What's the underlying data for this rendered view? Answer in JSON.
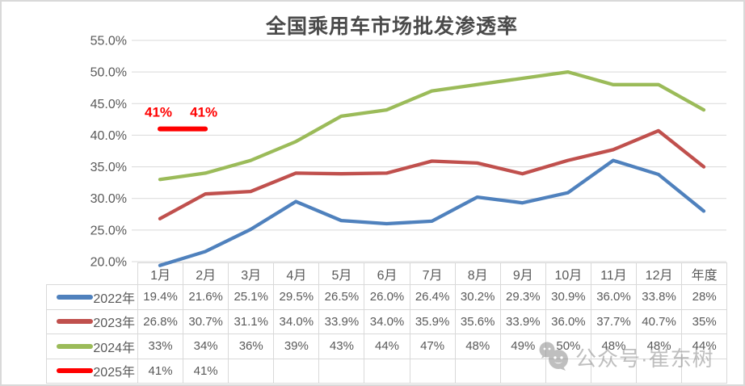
{
  "title": "全国乘用车市场批发渗透率",
  "watermark": {
    "text": "公众号·崔东树",
    "icon": "wechat-icon",
    "color": "#8c8c8c"
  },
  "colors": {
    "grid": "#d9d9d9",
    "axis_text": "#595959",
    "series_2022": "#4F81BD",
    "series_2023": "#C0504D",
    "series_2024": "#9BBB59",
    "series_2025": "#FF0000"
  },
  "chart_data": {
    "type": "line",
    "title": "全国乘用车市场批发渗透率",
    "categories": [
      "1月",
      "2月",
      "3月",
      "4月",
      "5月",
      "6月",
      "7月",
      "8月",
      "9月",
      "10月",
      "11月",
      "12月",
      "年度"
    ],
    "y_ticks": [
      "55.0%",
      "50.0%",
      "45.0%",
      "40.0%",
      "35.0%",
      "30.0%",
      "25.0%",
      "20.0%"
    ],
    "ylim": [
      20,
      55
    ],
    "grid": "horizontal",
    "legend_position": "table-left",
    "series": [
      {
        "name": "2022年",
        "color": "#4F81BD",
        "values": [
          19.4,
          21.6,
          25.1,
          29.5,
          26.5,
          26.0,
          26.4,
          30.2,
          29.3,
          30.9,
          36.0,
          33.8,
          28
        ]
      },
      {
        "name": "2023年",
        "color": "#C0504D",
        "values": [
          26.8,
          30.7,
          31.1,
          34.0,
          33.9,
          34.0,
          35.9,
          35.6,
          33.9,
          36.0,
          37.7,
          40.7,
          35
        ]
      },
      {
        "name": "2024年",
        "color": "#9BBB59",
        "values": [
          33,
          34,
          36,
          39,
          43,
          44,
          47,
          48,
          49,
          50,
          48,
          48,
          44
        ]
      },
      {
        "name": "2025年",
        "color": "#FF0000",
        "values": [
          41,
          41
        ]
      }
    ],
    "annotations": [
      {
        "label": "41%",
        "x_index": 0,
        "value": 41,
        "color": "#FF0000"
      },
      {
        "label": "41%",
        "x_index": 1,
        "value": 41,
        "color": "#FF0000"
      }
    ]
  },
  "table": {
    "header": [
      "1月",
      "2月",
      "3月",
      "4月",
      "5月",
      "6月",
      "7月",
      "8月",
      "9月",
      "10月",
      "11月",
      "12月",
      "年度"
    ],
    "rows": [
      {
        "year": "2022年",
        "color": "#4F81BD",
        "values": [
          "19.4%",
          "21.6%",
          "25.1%",
          "29.5%",
          "26.5%",
          "26.0%",
          "26.4%",
          "30.2%",
          "29.3%",
          "30.9%",
          "36.0%",
          "33.8%",
          "28%"
        ]
      },
      {
        "year": "2023年",
        "color": "#C0504D",
        "values": [
          "26.8%",
          "30.7%",
          "31.1%",
          "34.0%",
          "33.9%",
          "34.0%",
          "35.9%",
          "35.6%",
          "33.9%",
          "36.0%",
          "37.7%",
          "40.7%",
          "35%"
        ]
      },
      {
        "year": "2024年",
        "color": "#9BBB59",
        "values": [
          "33%",
          "34%",
          "36%",
          "39%",
          "43%",
          "44%",
          "47%",
          "48%",
          "49%",
          "50%",
          "48%",
          "48%",
          "44%"
        ]
      },
      {
        "year": "2025年",
        "color": "#FF0000",
        "values": [
          "41%",
          "41%",
          "",
          "",
          "",
          "",
          "",
          "",
          "",
          "",
          "",
          "",
          ""
        ]
      }
    ]
  }
}
